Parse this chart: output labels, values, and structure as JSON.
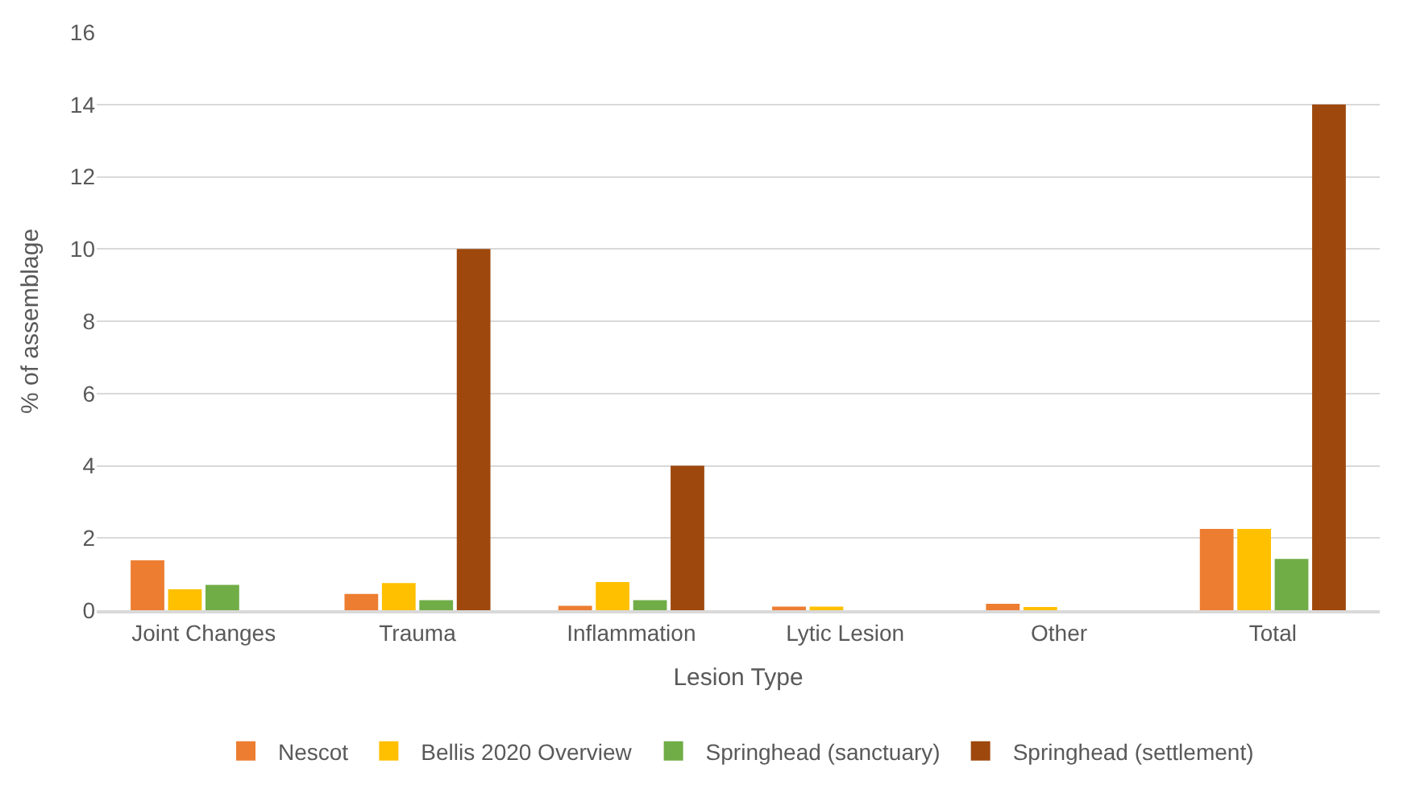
{
  "chart_data": {
    "type": "bar",
    "xlabel": "Lesion Type",
    "ylabel": "% of assemblage",
    "categories": [
      "Joint Changes",
      "Trauma",
      "Inflammation",
      "Lytic Lesion",
      "Other",
      "Total"
    ],
    "series": [
      {
        "name": "Nescot",
        "color": "#ed7d31",
        "values": [
          1.38,
          0.45,
          0.12,
          0.1,
          0.18,
          2.25
        ]
      },
      {
        "name": "Bellis 2020 Overview",
        "color": "#ffc000",
        "values": [
          0.58,
          0.75,
          0.78,
          0.1,
          0.05,
          2.25
        ]
      },
      {
        "name": "Springhead (sanctuary)",
        "color": "#70ad47",
        "values": [
          0.7,
          0.28,
          0.28,
          0,
          0,
          1.42
        ]
      },
      {
        "name": "Springhead (settlement)",
        "color": "#9e480e",
        "values": [
          0,
          10,
          4,
          0,
          0,
          14
        ]
      }
    ],
    "ylim": [
      0,
      16
    ],
    "yticks": [
      0,
      2,
      4,
      6,
      8,
      10,
      12,
      14,
      16
    ],
    "grid": "y",
    "legend": "bottom"
  }
}
